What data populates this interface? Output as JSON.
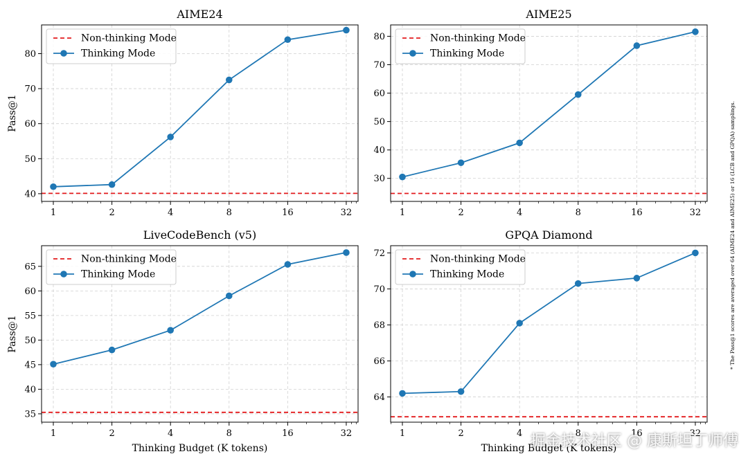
{
  "figure": {
    "footnote": "* The Pass@1 scores are averaged over 64 (AIME24 and AIME25) or 16 (LCB and GPQA) samplings.",
    "watermark": "掘金技术社区 @ 康斯坦丁师傅",
    "colors": {
      "thinking": "#1f77b4",
      "non_thinking": "#e31a1c",
      "grid": "#d0d0d0"
    }
  },
  "chart_data": [
    {
      "type": "line",
      "title": "AIME24",
      "xlabel": "",
      "ylabel": "Pass@1",
      "x_scale": "log2",
      "x": [
        1,
        2,
        4,
        8,
        16,
        32
      ],
      "xlim": [
        0.87,
        36.8
      ],
      "ylim": [
        37.8,
        88.2
      ],
      "yticks": [
        40,
        50,
        60,
        70,
        80
      ],
      "grid": true,
      "legend": "top-left",
      "series": [
        {
          "name": "Non-thinking Mode",
          "style": "dashed",
          "color": "#e31a1c",
          "value": 40.1
        },
        {
          "name": "Thinking Mode",
          "style": "line-marker",
          "color": "#1f77b4",
          "values": [
            42.0,
            42.6,
            56.2,
            72.5,
            84.0,
            86.7
          ]
        }
      ]
    },
    {
      "type": "line",
      "title": "AIME25",
      "xlabel": "",
      "ylabel": "",
      "x_scale": "log2",
      "x": [
        1,
        2,
        4,
        8,
        16,
        32
      ],
      "xlim": [
        0.87,
        36.8
      ],
      "ylim": [
        21.9,
        84.0
      ],
      "yticks": [
        30,
        40,
        50,
        60,
        70,
        80
      ],
      "grid": true,
      "legend": "top-left",
      "series": [
        {
          "name": "Non-thinking Mode",
          "style": "dashed",
          "color": "#e31a1c",
          "value": 24.7
        },
        {
          "name": "Thinking Mode",
          "style": "line-marker",
          "color": "#1f77b4",
          "values": [
            30.5,
            35.5,
            42.5,
            59.5,
            76.7,
            81.6
          ]
        }
      ]
    },
    {
      "type": "line",
      "title": "LiveCodeBench (v5)",
      "xlabel": "Thinking Budget (K tokens)",
      "ylabel": "Pass@1",
      "x_scale": "log2",
      "x": [
        1,
        2,
        4,
        8,
        16,
        32
      ],
      "xlim": [
        0.87,
        36.8
      ],
      "ylim": [
        33.3,
        69.2
      ],
      "yticks": [
        35,
        40,
        45,
        50,
        55,
        60,
        65
      ],
      "grid": true,
      "legend": "top-left",
      "series": [
        {
          "name": "Non-thinking Mode",
          "style": "dashed",
          "color": "#e31a1c",
          "value": 35.3
        },
        {
          "name": "Thinking Mode",
          "style": "line-marker",
          "color": "#1f77b4",
          "values": [
            45.1,
            48.0,
            52.0,
            59.0,
            65.4,
            67.8
          ]
        }
      ]
    },
    {
      "type": "line",
      "title": "GPQA Diamond",
      "xlabel": "Thinking Budget (K tokens)",
      "ylabel": "",
      "x_scale": "log2",
      "x": [
        1,
        2,
        4,
        8,
        16,
        32
      ],
      "xlim": [
        0.87,
        36.8
      ],
      "ylim": [
        62.6,
        72.4
      ],
      "yticks": [
        64,
        66,
        68,
        70,
        72
      ],
      "grid": true,
      "legend": "top-left",
      "series": [
        {
          "name": "Non-thinking Mode",
          "style": "dashed",
          "color": "#e31a1c",
          "value": 62.9
        },
        {
          "name": "Thinking Mode",
          "style": "line-marker",
          "color": "#1f77b4",
          "values": [
            64.2,
            64.3,
            68.1,
            70.3,
            70.6,
            72.0
          ]
        }
      ]
    }
  ]
}
